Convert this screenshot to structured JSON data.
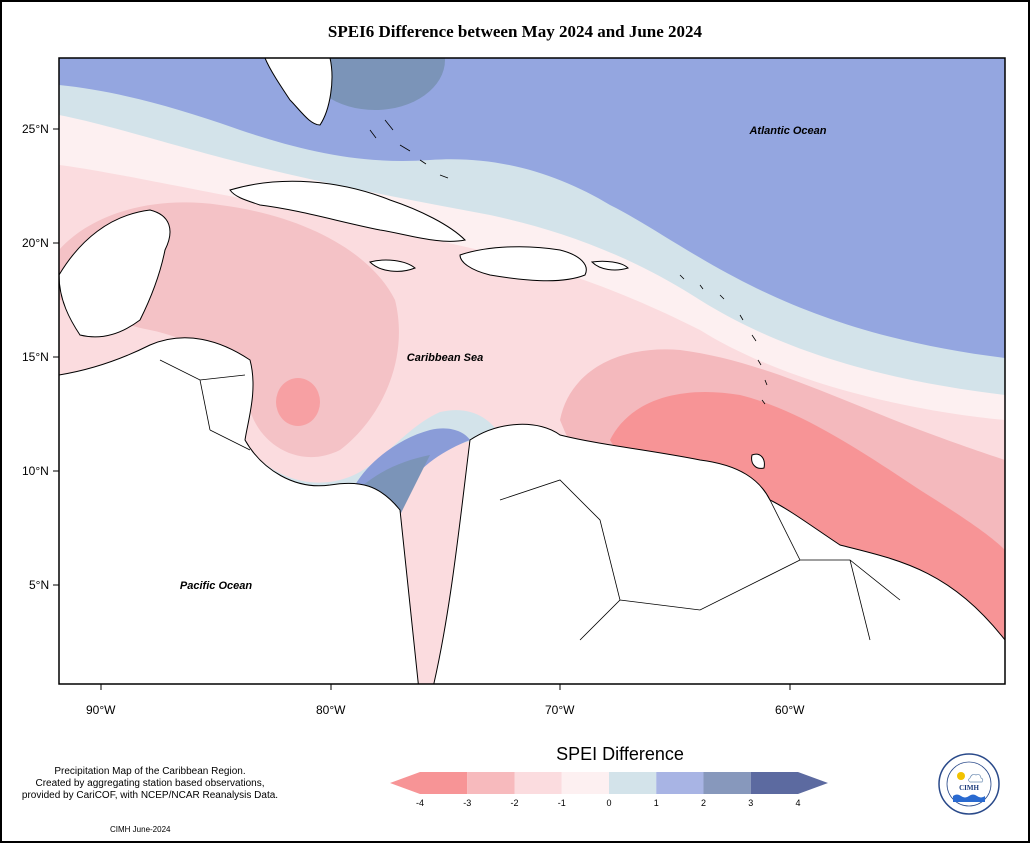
{
  "title": "SPEI6 Difference between May 2024 and June 2024",
  "map": {
    "region_labels": [
      {
        "id": "atlantic",
        "text": "Atlantic Ocean"
      },
      {
        "id": "caribbean",
        "text": "Caribbean Sea"
      },
      {
        "id": "pacific",
        "text": "Pacific Ocean"
      }
    ],
    "lat_labels": [
      "25°N",
      "20°N",
      "15°N",
      "10°N",
      "5°N"
    ],
    "lon_labels": [
      "90°W",
      "80°W",
      "70°W",
      "60°W"
    ]
  },
  "legend": {
    "title": "SPEI Difference",
    "ticks": [
      "-4",
      "-3",
      "-2",
      "-1",
      "0",
      "1",
      "2",
      "3",
      "4"
    ],
    "colors": [
      "#f79496",
      "#f7babd",
      "#fbdcdf",
      "#fdf0f1",
      "#d3e3ea",
      "#a8b4e4",
      "#8798bc",
      "#5c6aa0"
    ]
  },
  "credits": {
    "line1": "Precipitation Map of the Caribbean Region.",
    "line2": "Created by aggregating station based observations,",
    "line3": "provided by CariCOF, with NCEP/NCAR Reanalysis Data.",
    "stamp": "CIMH June-2024"
  },
  "logo": {
    "text": "CIMH",
    "ring_text": "Caribbean Institute for Meteorology and Hydrology"
  }
}
